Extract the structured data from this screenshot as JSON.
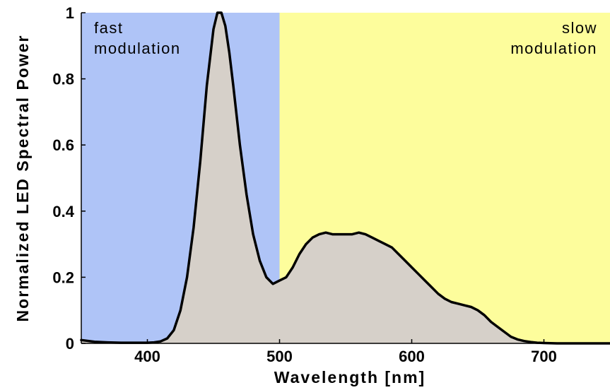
{
  "chart_data": {
    "type": "area",
    "title": "",
    "xlabel": "Wavelength [nm]",
    "ylabel": "Normalized LED Spectral Power",
    "xlim": [
      350,
      750
    ],
    "ylim": [
      0,
      1
    ],
    "xticks": [
      400,
      500,
      600,
      700
    ],
    "yticks": [
      0,
      0.2,
      0.4,
      0.6,
      0.8,
      1
    ],
    "ytick_labels": [
      "0",
      "0.2",
      "0.4",
      "0.6",
      "0.8",
      "1"
    ],
    "grid": false,
    "regions": [
      {
        "label_lines": [
          "fast",
          "modulation"
        ],
        "x_start": 350,
        "x_end": 500,
        "color": "#afc4f7",
        "label_align": "left"
      },
      {
        "label_lines": [
          "slow",
          "modulation"
        ],
        "x_start": 500,
        "x_end": 750,
        "color": "#fdfd9c",
        "label_align": "right"
      }
    ],
    "series": [
      {
        "fill_color": "#d6d0c9",
        "line_color": "#000000",
        "x": [
          350,
          360,
          370,
          380,
          390,
          400,
          405,
          410,
          415,
          420,
          425,
          430,
          435,
          440,
          445,
          450,
          453,
          456,
          459,
          462,
          465,
          470,
          475,
          480,
          485,
          490,
          495,
          500,
          505,
          510,
          515,
          520,
          525,
          530,
          535,
          540,
          545,
          550,
          555,
          560,
          565,
          570,
          575,
          580,
          585,
          590,
          595,
          600,
          605,
          610,
          615,
          620,
          625,
          630,
          635,
          640,
          645,
          650,
          655,
          660,
          665,
          670,
          675,
          680,
          685,
          690,
          695,
          700,
          710,
          720,
          730,
          740,
          750
        ],
        "y": [
          0.01,
          0.005,
          0.003,
          0.002,
          0.002,
          0.002,
          0.003,
          0.006,
          0.015,
          0.04,
          0.1,
          0.2,
          0.35,
          0.55,
          0.78,
          0.95,
          1.0,
          1.0,
          0.96,
          0.88,
          0.78,
          0.6,
          0.45,
          0.33,
          0.25,
          0.2,
          0.18,
          0.19,
          0.2,
          0.23,
          0.27,
          0.3,
          0.32,
          0.33,
          0.335,
          0.33,
          0.33,
          0.33,
          0.33,
          0.335,
          0.33,
          0.32,
          0.31,
          0.3,
          0.29,
          0.27,
          0.25,
          0.23,
          0.21,
          0.19,
          0.17,
          0.15,
          0.135,
          0.125,
          0.12,
          0.115,
          0.11,
          0.1,
          0.085,
          0.065,
          0.05,
          0.035,
          0.02,
          0.012,
          0.007,
          0.004,
          0.002,
          0.001,
          0,
          0,
          0,
          0,
          0
        ]
      }
    ]
  }
}
